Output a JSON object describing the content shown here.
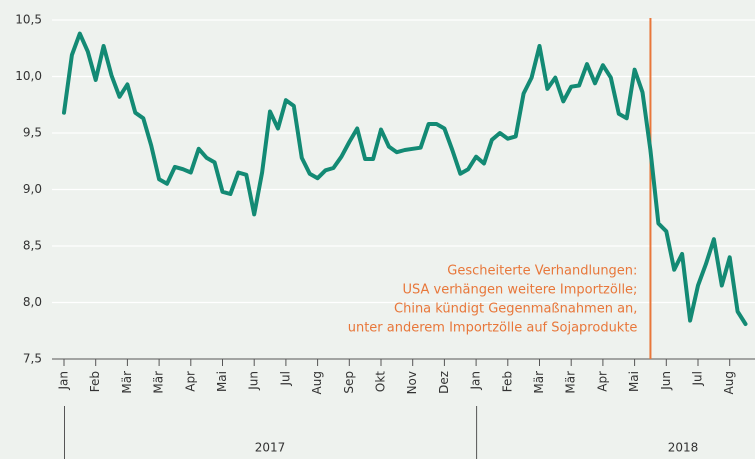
{
  "chart_data": {
    "type": "line",
    "categories": [
      "Jan",
      null,
      null,
      null,
      "Feb",
      null,
      null,
      null,
      "Mär",
      null,
      null,
      null,
      "Mär",
      null,
      null,
      null,
      "Apr",
      null,
      null,
      null,
      "Mai",
      null,
      null,
      null,
      "Jun",
      null,
      null,
      null,
      "Jul",
      null,
      null,
      null,
      "Aug",
      null,
      null,
      null,
      "Sep",
      null,
      null,
      null,
      "Okt",
      null,
      null,
      null,
      "Nov",
      null,
      null,
      null,
      "Dez",
      null,
      null,
      null,
      "Jan",
      null,
      null,
      null,
      "Feb",
      null,
      null,
      null,
      "Mär",
      null,
      null,
      null,
      "Mär",
      null,
      null,
      null,
      "Apr",
      null,
      null,
      null,
      "Mai",
      null,
      null,
      null,
      "Jun",
      null,
      null,
      null,
      "Jul",
      null,
      null,
      null,
      "Aug",
      null,
      null
    ],
    "values": [
      9.68,
      10.19,
      10.38,
      10.22,
      9.97,
      10.27,
      10.01,
      9.82,
      9.93,
      9.68,
      9.63,
      9.39,
      9.09,
      9.05,
      9.2,
      9.18,
      9.15,
      9.36,
      9.28,
      9.24,
      8.98,
      8.96,
      9.15,
      9.13,
      8.78,
      9.15,
      9.69,
      9.54,
      9.79,
      9.74,
      9.28,
      9.14,
      9.1,
      9.17,
      9.19,
      9.29,
      9.42,
      9.54,
      9.27,
      9.27,
      9.53,
      9.38,
      9.33,
      9.35,
      9.36,
      9.37,
      9.58,
      9.58,
      9.54,
      9.35,
      9.14,
      9.18,
      9.29,
      9.23,
      9.44,
      9.5,
      9.45,
      9.47,
      9.85,
      9.99,
      10.27,
      9.89,
      9.99,
      9.78,
      9.91,
      9.92,
      10.11,
      9.94,
      10.1,
      9.99,
      9.67,
      9.63,
      10.06,
      9.86,
      9.35,
      8.7,
      8.63,
      8.29,
      8.43,
      7.84,
      8.15,
      8.34,
      8.56,
      8.15,
      8.4,
      7.92,
      7.81
    ],
    "color": "#138a74",
    "ylim": [
      7.5,
      10.5
    ],
    "yticks": [
      {
        "value": 7.5,
        "label": "7,5"
      },
      {
        "value": 8.0,
        "label": "8,0"
      },
      {
        "value": 8.5,
        "label": "8,5"
      },
      {
        "value": 9.0,
        "label": "9,0"
      },
      {
        "value": 9.5,
        "label": "9,5"
      },
      {
        "value": 10.0,
        "label": "10,0"
      },
      {
        "value": 10.5,
        "label": "10,5"
      }
    ],
    "grid": true,
    "years": [
      "2017",
      "2018"
    ],
    "annotation": {
      "at": 74,
      "color": "#e8773a",
      "lines": [
        "Gescheiterte Verhandlungen:",
        "USA verhängen weitere Importzölle;",
        "China kündigt Gegenmaßnahmen an,",
        "unter anderem Importzölle auf Sojaprodukte"
      ]
    }
  }
}
